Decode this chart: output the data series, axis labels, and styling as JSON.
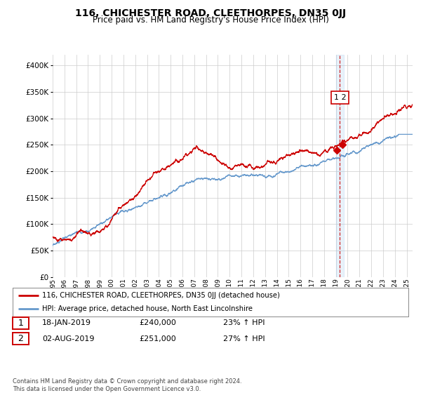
{
  "title": "116, CHICHESTER ROAD, CLEETHORPES, DN35 0JJ",
  "subtitle": "Price paid vs. HM Land Registry's House Price Index (HPI)",
  "ytick_values": [
    0,
    50000,
    100000,
    150000,
    200000,
    250000,
    300000,
    350000,
    400000
  ],
  "ylim": [
    0,
    420000
  ],
  "xlim_start": 1995.0,
  "xlim_end": 2025.5,
  "red_color": "#cc0000",
  "blue_color": "#6699cc",
  "marker1_x": 2019.05,
  "marker2_x": 2019.58,
  "marker1_y": 240000,
  "marker2_y": 251000,
  "dashed_x": 2019.3,
  "shade_x1": 2019.0,
  "shade_x2": 2019.65,
  "legend_line1": "116, CHICHESTER ROAD, CLEETHORPES, DN35 0JJ (detached house)",
  "legend_line2": "HPI: Average price, detached house, North East Lincolnshire",
  "ann1_label": "1",
  "ann2_label": "2",
  "ann1_date": "18-JAN-2019",
  "ann1_price": "£240,000",
  "ann1_hpi": "23% ↑ HPI",
  "ann2_date": "02-AUG-2019",
  "ann2_price": "£251,000",
  "ann2_hpi": "27% ↑ HPI",
  "footer": "Contains HM Land Registry data © Crown copyright and database right 2024.\nThis data is licensed under the Open Government Licence v3.0.",
  "background_color": "#ffffff",
  "grid_color": "#cccccc",
  "label_box_color": "#cc0000"
}
